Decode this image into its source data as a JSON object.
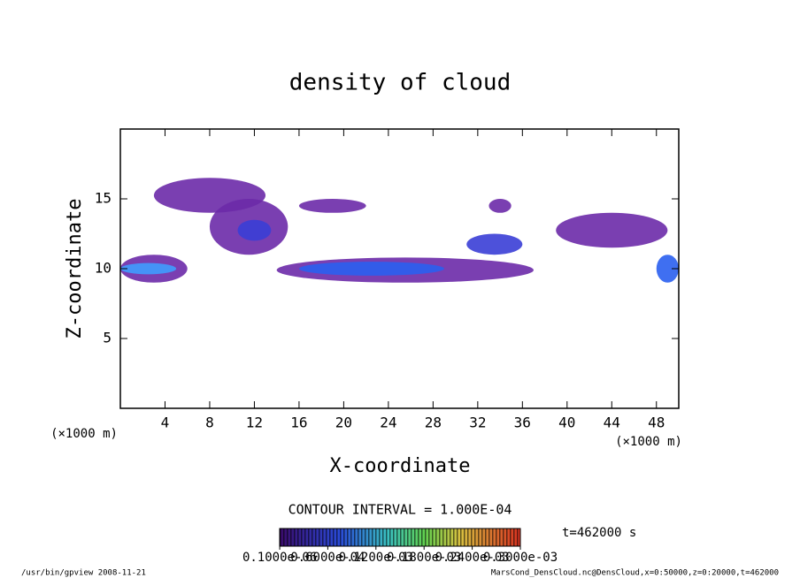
{
  "chart_data": {
    "type": "contour",
    "title": "density of cloud",
    "x_label": "X-coordinate",
    "y_label": "Z-coordinate",
    "x_unit": "(×1000 m)",
    "y_unit": "(×1000 m)",
    "xlim": [
      0,
      50
    ],
    "xticks": [
      4,
      8,
      12,
      16,
      20,
      24,
      28,
      32,
      36,
      40,
      44,
      48
    ],
    "ylim": [
      0,
      20
    ],
    "yticks": [
      5,
      10,
      15
    ],
    "blobs": [
      {
        "x": [
          3,
          13
        ],
        "z": [
          14,
          16.5
        ],
        "value": 0.0001,
        "color": "#6b2aa8"
      },
      {
        "x": [
          8,
          15
        ],
        "z": [
          11,
          15
        ],
        "value": 0.0001,
        "color": "#6b2aa8"
      },
      {
        "x": [
          16,
          22
        ],
        "z": [
          14,
          15
        ],
        "value": 0.0001,
        "color": "#6b2aa8"
      },
      {
        "x": [
          10.5,
          13.5
        ],
        "z": [
          12,
          13.5
        ],
        "value": 0.00015,
        "color": "#3a3ed6"
      },
      {
        "x": [
          0,
          6
        ],
        "z": [
          9,
          11
        ],
        "value": 0.0001,
        "color": "#6b2aa8"
      },
      {
        "x": [
          0,
          5
        ],
        "z": [
          9.6,
          10.4
        ],
        "value": 0.00025,
        "color": "#3f9cff"
      },
      {
        "x": [
          14,
          37
        ],
        "z": [
          9,
          10.8
        ],
        "value": 0.0001,
        "color": "#6b2aa8"
      },
      {
        "x": [
          16,
          29
        ],
        "z": [
          9.5,
          10.5
        ],
        "value": 0.0002,
        "color": "#2a5ff0"
      },
      {
        "x": [
          31,
          36
        ],
        "z": [
          11,
          12.5
        ],
        "value": 0.00015,
        "color": "#3a3ed6"
      },
      {
        "x": [
          33,
          35
        ],
        "z": [
          14,
          15
        ],
        "value": 0.0001,
        "color": "#6b2aa8"
      },
      {
        "x": [
          39,
          49
        ],
        "z": [
          11.5,
          14
        ],
        "value": 0.0001,
        "color": "#6b2aa8"
      },
      {
        "x": [
          48,
          50
        ],
        "z": [
          9,
          11
        ],
        "value": 0.0002,
        "color": "#2a5ff0"
      }
    ],
    "contour_interval": "CONTOUR INTERVAL = 1.000E-04",
    "time_label": "t=462000 s",
    "colorbar_lim": [
      0,
      0.0003
    ],
    "colorbar_ticks": [
      {
        "value": 1e-07,
        "label": "0.1000e-06"
      },
      {
        "value": 6e-05,
        "label": "0.6000e-04"
      },
      {
        "value": 0.00012,
        "label": "0.1200e-03"
      },
      {
        "value": 0.00018,
        "label": "0.1800e-03"
      },
      {
        "value": 0.00024,
        "label": "0.2400e-03"
      },
      {
        "value": 0.0003,
        "label": "0.3000e-03"
      }
    ],
    "footer_left": "/usr/bin/gpview  2008-11-21",
    "footer_right": "MarsCond_DensCloud.nc@DensCloud,x=0:50000,z=0:20000,t=462000"
  }
}
